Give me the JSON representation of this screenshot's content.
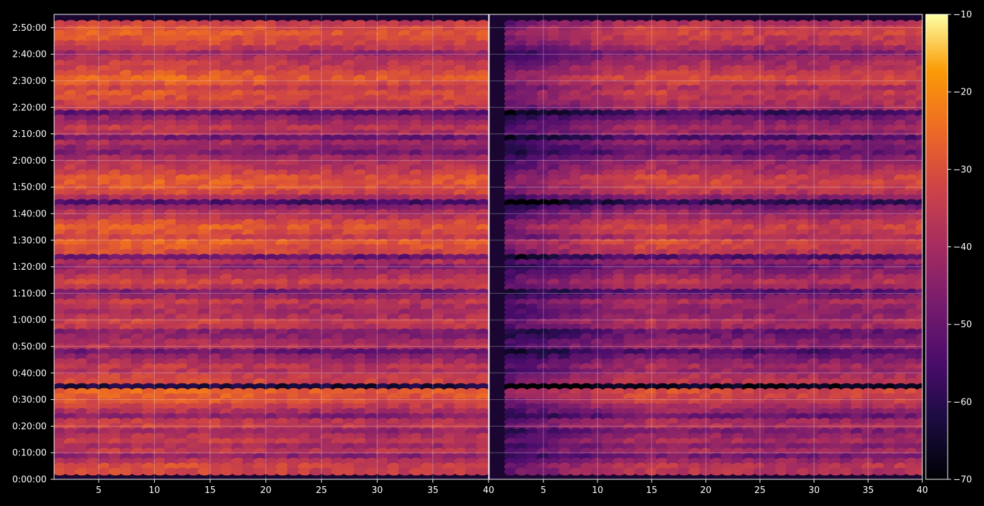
{
  "chart_data": {
    "type": "heatmap",
    "title": "",
    "xlabel": "",
    "ylabel": "",
    "panels": [
      {
        "name": "",
        "xlim": [
          1,
          40
        ],
        "x_ticks": [
          5,
          10,
          15,
          20,
          25,
          30,
          35,
          40
        ]
      },
      {
        "name": "",
        "xlim": [
          0,
          40
        ],
        "x_ticks": [
          5,
          10,
          15,
          20,
          25,
          30,
          35,
          40
        ]
      }
    ],
    "y_ticks": [
      "0:00:00",
      "0:10:00",
      "0:20:00",
      "0:30:00",
      "0:40:00",
      "0:50:00",
      "1:00:00",
      "1:10:00",
      "1:20:00",
      "1:30:00",
      "1:40:00",
      "1:50:00",
      "2:00:00",
      "2:10:00",
      "2:20:00",
      "2:30:00",
      "2:40:00",
      "2:50:00"
    ],
    "ylim_seconds": [
      0,
      10500
    ],
    "colorbar": {
      "colormap": "inferno",
      "min": -70,
      "max": -10,
      "ticks": [
        "−10",
        "−20",
        "−30",
        "−40",
        "−50",
        "−60",
        "−70"
      ]
    },
    "grid": true,
    "note_values": "dB level per (channel, time) cell; approx. row profile",
    "row_level_profile": [
      -33,
      -32,
      -37,
      -44,
      -36,
      -40,
      -35,
      -38,
      -42,
      -34,
      -36,
      -45,
      -38,
      -34,
      -30,
      -28,
      -27,
      -62,
      -32,
      -34,
      -38,
      -36,
      -40,
      -44,
      -50,
      -38,
      -40,
      -44,
      -46,
      -36,
      -34,
      -38,
      -40,
      -38,
      -35,
      -42,
      -48,
      -36,
      -33,
      -36,
      -40,
      -44,
      -38,
      -50,
      -32,
      -29,
      -27,
      -34,
      -30,
      -28,
      -31,
      -36,
      -38,
      -44,
      -55,
      -40,
      -32,
      -30,
      -28,
      -29,
      -33,
      -36,
      -38,
      -41,
      -47,
      -44,
      -40,
      -50,
      -38,
      -36,
      -40,
      -44,
      -52,
      -36,
      -34,
      -32,
      -30,
      -34,
      -29,
      -27,
      -30,
      -33,
      -35,
      -38,
      -42,
      -36,
      -32,
      -30,
      -28,
      -30,
      -34
    ]
  }
}
